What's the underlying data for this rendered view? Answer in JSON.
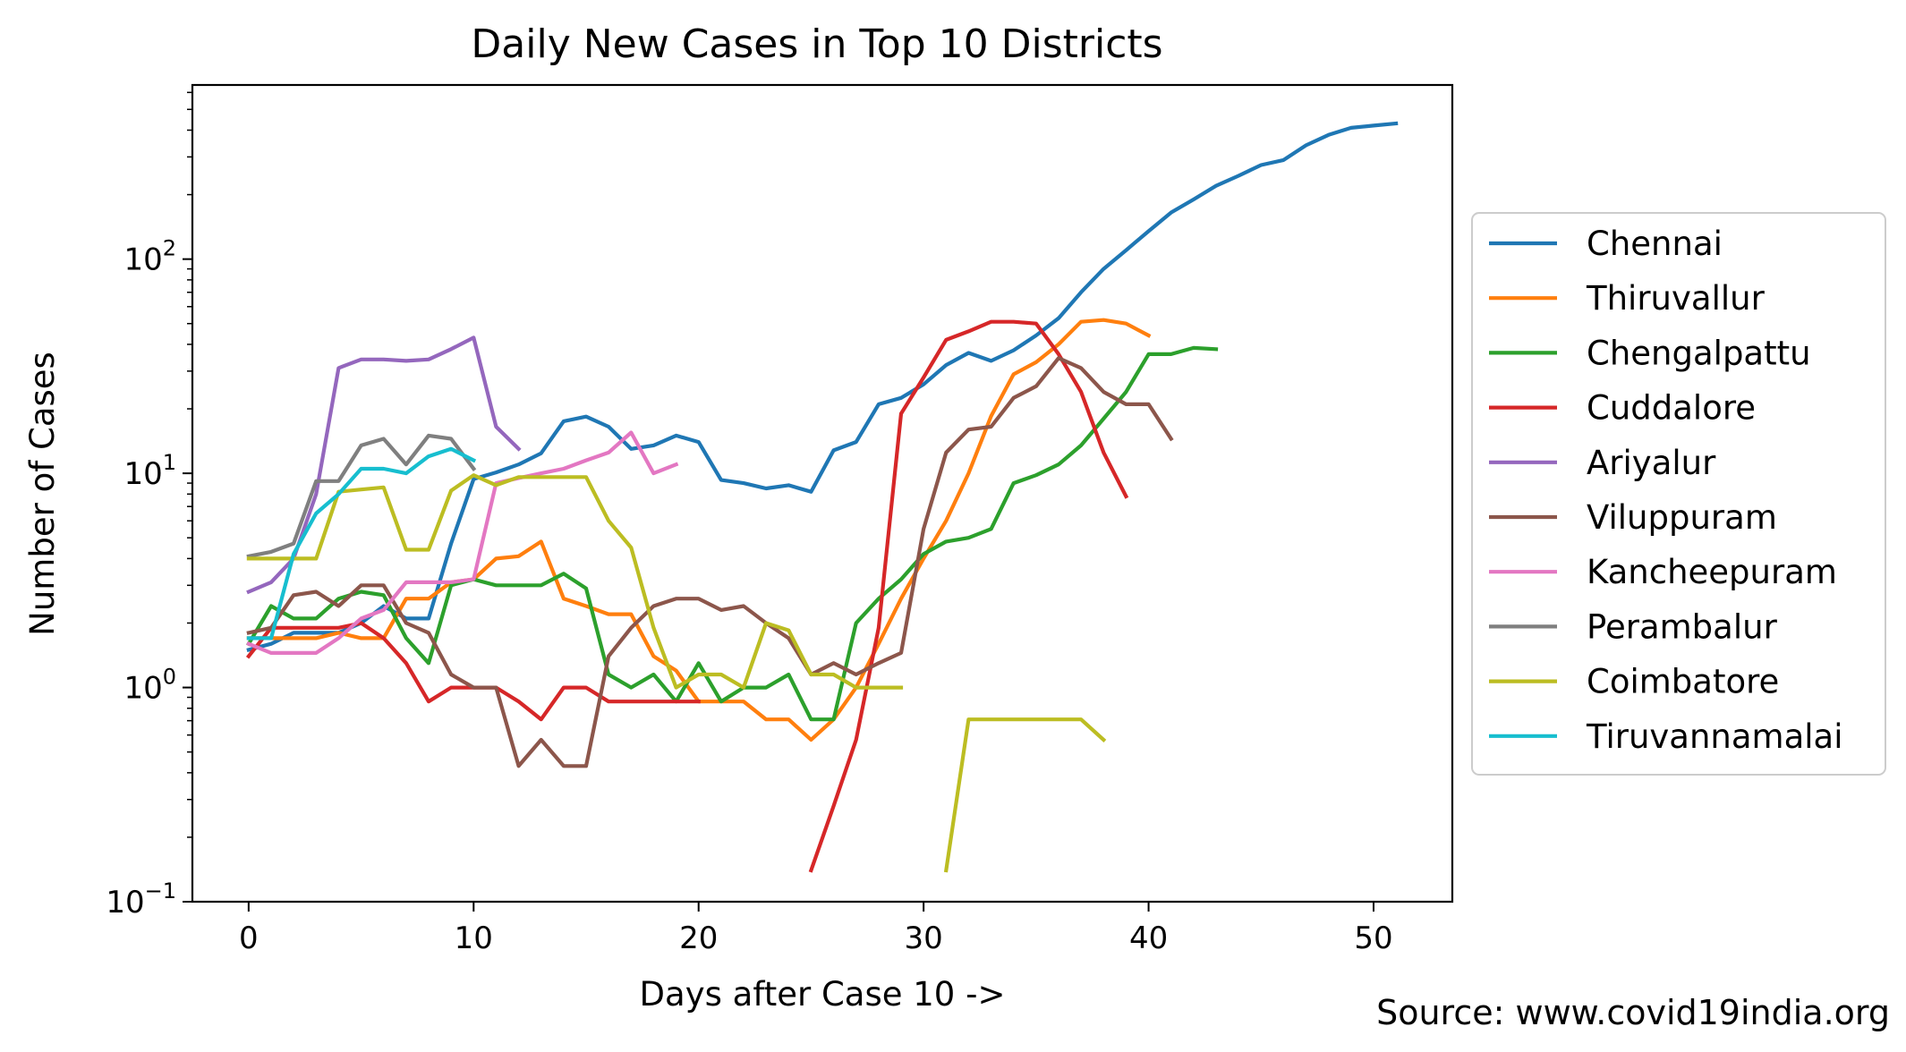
{
  "chart_data": {
    "type": "line",
    "title": "Daily New Cases in Top 10 Districts",
    "xlabel": "Days after Case 10 ->",
    "ylabel": "Number of Cases",
    "yscale": "log",
    "xlim": [
      -2.5,
      53.5
    ],
    "ylim": [
      0.1,
      650
    ],
    "xticks": [
      0,
      10,
      20,
      30,
      40,
      50
    ],
    "yticks": [
      {
        "value": 0.1,
        "base": "10",
        "exp": "−1"
      },
      {
        "value": 1,
        "base": "10",
        "exp": "0"
      },
      {
        "value": 10,
        "base": "10",
        "exp": "1"
      },
      {
        "value": 100,
        "base": "10",
        "exp": "2"
      }
    ],
    "legend_position": "right",
    "grid": false,
    "source": "Source: www.covid19india.org",
    "series": [
      {
        "name": "Chennai",
        "color": "#1f77b4",
        "x0": 0,
        "values": [
          1.5,
          1.6,
          1.8,
          1.8,
          1.8,
          2.0,
          2.4,
          2.1,
          2.1,
          4.7,
          9.4,
          10.1,
          11.0,
          12.4,
          17.5,
          18.4,
          16.5,
          13.0,
          13.5,
          15.0,
          14.0,
          9.3,
          9.0,
          8.5,
          8.8,
          8.2,
          12.8,
          14.0,
          21.0,
          22.5,
          26.0,
          32.0,
          36.5,
          33.5,
          37.5,
          44.0,
          53.0,
          70.0,
          90.0,
          110.0,
          135.0,
          165.0,
          190.0,
          220.0,
          245.0,
          275.0,
          290.0,
          340.0,
          380.0,
          410.0,
          420.0,
          430.0
        ]
      },
      {
        "name": "Thiruvallur",
        "color": "#ff7f0e",
        "x0": 0,
        "values": [
          1.7,
          1.7,
          1.7,
          1.7,
          1.8,
          1.7,
          1.7,
          2.6,
          2.6,
          3.1,
          3.2,
          4.0,
          4.1,
          4.8,
          2.6,
          2.4,
          2.2,
          2.2,
          1.4,
          1.2,
          0.86,
          0.86,
          0.86,
          0.71,
          0.71,
          0.57,
          0.71,
          1.0,
          1.6,
          2.6,
          4.0,
          6.0,
          10.0,
          18.5,
          29.0,
          33.0,
          40.0,
          51.0,
          52.0,
          50.0,
          44.0
        ]
      },
      {
        "name": "Chengalpattu",
        "color": "#2ca02c",
        "x0": 0,
        "values": [
          1.6,
          2.4,
          2.1,
          2.1,
          2.6,
          2.8,
          2.7,
          1.7,
          1.3,
          3.0,
          3.2,
          3.0,
          3.0,
          3.0,
          3.4,
          2.9,
          1.15,
          1.0,
          1.15,
          0.86,
          1.3,
          0.86,
          1.0,
          1.0,
          1.15,
          0.71,
          0.71,
          2.0,
          2.6,
          3.2,
          4.2,
          4.8,
          5.0,
          5.5,
          9.0,
          9.8,
          11.0,
          13.5,
          18.0,
          24.0,
          36.0,
          36.0,
          38.5,
          38.0
        ]
      },
      {
        "name": "Cuddalore",
        "color": "#d62728",
        "x0": 0,
        "values": [
          1.4,
          1.9,
          1.9,
          1.9,
          1.9,
          2.0,
          1.7,
          1.3,
          0.86,
          1.0,
          1.0,
          1.0,
          0.86,
          0.71,
          1.0,
          1.0,
          0.86,
          0.86,
          0.86,
          0.86,
          0.86,
          null,
          null,
          null,
          null,
          0.14,
          0.28,
          0.57,
          1.9,
          19.0,
          28.0,
          42.0,
          46.0,
          51.0,
          51.0,
          50.0,
          36.0,
          24.0,
          12.5,
          7.8
        ]
      },
      {
        "name": "Ariyalur",
        "color": "#9467bd",
        "x0": 0,
        "values": [
          2.8,
          3.1,
          4.0,
          8.0,
          31.0,
          34.0,
          34.0,
          33.5,
          34.0,
          38.0,
          43.0,
          16.5,
          13.0
        ]
      },
      {
        "name": "Viluppuram",
        "color": "#8c564b",
        "x0": 0,
        "values": [
          1.8,
          1.9,
          2.7,
          2.8,
          2.4,
          3.0,
          3.0,
          2.0,
          1.8,
          1.15,
          1.0,
          1.0,
          0.43,
          0.57,
          0.43,
          0.43,
          1.4,
          1.9,
          2.4,
          2.6,
          2.6,
          2.3,
          2.4,
          2.0,
          1.7,
          1.15,
          1.3,
          1.15,
          1.3,
          1.45,
          5.5,
          12.5,
          16.0,
          16.5,
          22.5,
          25.5,
          34.5,
          31.0,
          24.0,
          21.0,
          21.0,
          14.5
        ]
      },
      {
        "name": "Kancheepuram",
        "color": "#e377c2",
        "x0": 0,
        "values": [
          1.6,
          1.45,
          1.45,
          1.45,
          1.7,
          2.1,
          2.3,
          3.1,
          3.1,
          3.1,
          3.2,
          9.0,
          9.5,
          10.0,
          10.5,
          11.5,
          12.5,
          15.5,
          10.0,
          11.0
        ]
      },
      {
        "name": "Perambalur",
        "color": "#7f7f7f",
        "x0": 0,
        "values": [
          4.1,
          4.3,
          4.7,
          9.2,
          9.2,
          13.5,
          14.5,
          11.0,
          15.0,
          14.5,
          10.5
        ]
      },
      {
        "name": "Coimbatore",
        "color": "#bcbd22",
        "x0": 0,
        "values": [
          4.0,
          4.0,
          4.0,
          4.0,
          8.2,
          8.4,
          8.6,
          4.4,
          4.4,
          8.3,
          9.8,
          8.8,
          9.6,
          9.6,
          9.6,
          9.6,
          6.0,
          4.5,
          1.9,
          1.0,
          1.15,
          1.15,
          1.0,
          2.0,
          1.85,
          1.15,
          1.15,
          1.0,
          1.0,
          1.0,
          null,
          0.14,
          0.71,
          0.71,
          0.71,
          0.71,
          0.71,
          0.71,
          0.57
        ]
      },
      {
        "name": "Tiruvannamalai",
        "color": "#17becf",
        "x0": 0,
        "values": [
          1.7,
          1.7,
          4.2,
          6.5,
          8.0,
          10.5,
          10.5,
          10.0,
          12.0,
          13.0,
          11.5
        ]
      }
    ]
  }
}
